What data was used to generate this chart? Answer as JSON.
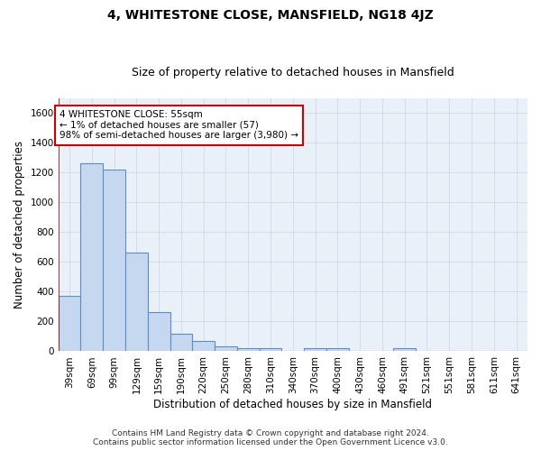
{
  "title": "4, WHITESTONE CLOSE, MANSFIELD, NG18 4JZ",
  "subtitle": "Size of property relative to detached houses in Mansfield",
  "xlabel": "Distribution of detached houses by size in Mansfield",
  "ylabel": "Number of detached properties",
  "categories": [
    "39sqm",
    "69sqm",
    "99sqm",
    "129sqm",
    "159sqm",
    "190sqm",
    "220sqm",
    "250sqm",
    "280sqm",
    "310sqm",
    "340sqm",
    "370sqm",
    "400sqm",
    "430sqm",
    "460sqm",
    "491sqm",
    "521sqm",
    "551sqm",
    "581sqm",
    "611sqm",
    "641sqm"
  ],
  "values": [
    370,
    1265,
    1220,
    665,
    265,
    115,
    68,
    35,
    22,
    18,
    0,
    18,
    18,
    0,
    0,
    18,
    0,
    0,
    0,
    0,
    0
  ],
  "bar_color": "#c5d8f0",
  "bar_edge_color": "#5b8ec4",
  "grid_color": "#d0d8e8",
  "background_color": "#eaf0f8",
  "annotation_box_text": "4 WHITESTONE CLOSE: 55sqm\n← 1% of detached houses are smaller (57)\n98% of semi-detached houses are larger (3,980) →",
  "annotation_box_color": "#cc0000",
  "annotation_fill": "white",
  "vline_color": "#cc0000",
  "vline_x": -0.5,
  "ylim": [
    0,
    1700
  ],
  "yticks": [
    0,
    200,
    400,
    600,
    800,
    1000,
    1200,
    1400,
    1600
  ],
  "footer_line1": "Contains HM Land Registry data © Crown copyright and database right 2024.",
  "footer_line2": "Contains public sector information licensed under the Open Government Licence v3.0.",
  "title_fontsize": 10,
  "subtitle_fontsize": 9,
  "xlabel_fontsize": 8.5,
  "ylabel_fontsize": 8.5,
  "annotation_fontsize": 7.5,
  "footer_fontsize": 6.5,
  "tick_fontsize": 7.5
}
